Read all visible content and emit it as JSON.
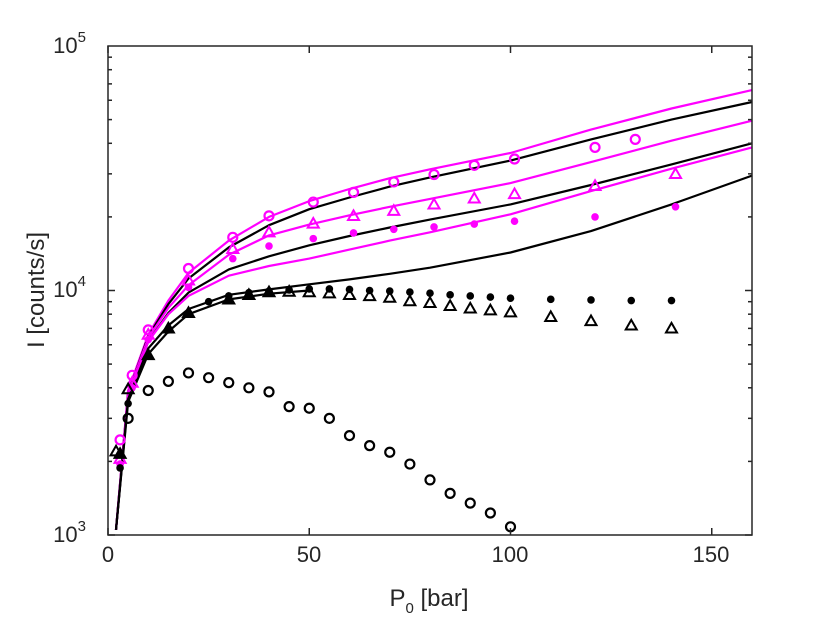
{
  "chart_data": {
    "type": "scatter",
    "title": "",
    "xlabel": {
      "main": "P",
      "sub": "0",
      "unit": " [bar]"
    },
    "ylabel": "I [counts/s]",
    "xlim": [
      0,
      160
    ],
    "ylim": [
      1000,
      100000
    ],
    "yscale": "log",
    "grid": false,
    "x_ticks": [
      {
        "value": 0,
        "label": "0"
      },
      {
        "value": 50,
        "label": "50"
      },
      {
        "value": 100,
        "label": "100"
      },
      {
        "value": 150,
        "label": "150"
      }
    ],
    "y_ticks": [
      {
        "value": 1000,
        "base": "10",
        "exp": "3"
      },
      {
        "value": 10000,
        "base": "10",
        "exp": "4"
      },
      {
        "value": 100000,
        "base": "10",
        "exp": "5"
      }
    ],
    "colors": {
      "magenta": "#ff00ff",
      "black": "#000000",
      "axis": "#262626"
    },
    "series": [
      {
        "name": "magenta-open-circles",
        "marker": "open-circle",
        "color": "#ff00ff",
        "x": [
          3,
          6,
          10,
          20,
          31,
          40,
          51,
          61,
          71,
          81,
          91,
          101,
          121,
          131
        ],
        "y": [
          2450,
          4500,
          6900,
          12300,
          16500,
          20200,
          23000,
          25200,
          27800,
          29800,
          32500,
          34500,
          38500,
          41500
        ]
      },
      {
        "name": "magenta-open-triangles",
        "marker": "open-triangle",
        "color": "#ff00ff",
        "x": [
          3,
          6,
          10,
          20,
          31,
          40,
          51,
          61,
          71,
          81,
          91,
          101,
          121,
          141
        ],
        "y": [
          2050,
          4200,
          6600,
          11000,
          14800,
          17300,
          18800,
          20200,
          21200,
          22500,
          23800,
          24800,
          26800,
          30000
        ]
      },
      {
        "name": "magenta-filled-circles",
        "marker": "filled-circle",
        "color": "#ff00ff",
        "x": [
          3,
          6,
          10,
          20,
          31,
          40,
          51,
          61,
          71,
          81,
          91,
          101,
          121,
          141
        ],
        "y": [
          1950,
          4000,
          6300,
          10300,
          13500,
          15200,
          16300,
          17200,
          17800,
          18200,
          18700,
          19200,
          20000,
          22000
        ]
      },
      {
        "name": "black-filled-circles",
        "marker": "filled-circle",
        "color": "#000000",
        "x": [
          3,
          5,
          10,
          15,
          20,
          25,
          30,
          35,
          40,
          45,
          50,
          55,
          60,
          65,
          70,
          75,
          80,
          85,
          90,
          95,
          100,
          110,
          120,
          130,
          140
        ],
        "y": [
          1880,
          3450,
          5400,
          6900,
          8100,
          9000,
          9500,
          9800,
          9950,
          10050,
          10150,
          10150,
          10100,
          10000,
          9950,
          9850,
          9750,
          9600,
          9500,
          9400,
          9300,
          9200,
          9150,
          9100,
          9100
        ]
      },
      {
        "name": "black-filled-triangles",
        "marker": "filled-triangle",
        "color": "#000000",
        "x": [
          3,
          10,
          15,
          20,
          30,
          35,
          40
        ],
        "y": [
          2150,
          5450,
          7000,
          8100,
          9200,
          9600,
          9850
        ]
      },
      {
        "name": "black-open-triangles",
        "marker": "open-triangle",
        "color": "#000000",
        "x": [
          2,
          5,
          45,
          50,
          55,
          60,
          65,
          70,
          75,
          80,
          85,
          90,
          95,
          100,
          110,
          120,
          130,
          140
        ],
        "y": [
          2200,
          3950,
          9900,
          9850,
          9750,
          9600,
          9500,
          9350,
          9050,
          8900,
          8650,
          8450,
          8300,
          8150,
          7800,
          7500,
          7200,
          7000
        ]
      },
      {
        "name": "black-open-circles",
        "marker": "open-circle",
        "color": "#000000",
        "x": [
          5,
          10,
          15,
          20,
          25,
          30,
          35,
          40,
          45,
          50,
          55,
          60,
          65,
          70,
          75,
          80,
          85,
          90,
          95,
          100
        ],
        "y": [
          3000,
          3900,
          4250,
          4600,
          4400,
          4200,
          4000,
          3850,
          3350,
          3300,
          3000,
          2550,
          2320,
          2180,
          1950,
          1680,
          1480,
          1350,
          1230,
          1080
        ]
      }
    ],
    "fit_lines": [
      {
        "name": "magenta-fit-upper",
        "color": "#ff00ff",
        "x": [
          2,
          5,
          10,
          15,
          20,
          30,
          40,
          50,
          60,
          70,
          80,
          100,
          120,
          140,
          160
        ],
        "y": [
          1050,
          3900,
          6600,
          9100,
          11800,
          16000,
          20000,
          23200,
          26000,
          28800,
          31300,
          36500,
          45500,
          55500,
          66000
        ]
      },
      {
        "name": "black-fit-1",
        "color": "#000000",
        "x": [
          2,
          5,
          10,
          15,
          20,
          30,
          40,
          50,
          60,
          70,
          80,
          100,
          120,
          140,
          160
        ],
        "y": [
          1050,
          3800,
          6500,
          8800,
          11200,
          15000,
          18500,
          21500,
          24000,
          26600,
          29000,
          34000,
          41500,
          50000,
          59000
        ]
      },
      {
        "name": "magenta-fit-middle",
        "color": "#ff00ff",
        "x": [
          2,
          5,
          10,
          15,
          20,
          30,
          40,
          50,
          60,
          70,
          80,
          100,
          120,
          140,
          160
        ],
        "y": [
          1050,
          3800,
          6400,
          8500,
          10500,
          14000,
          16800,
          18600,
          20300,
          22000,
          23700,
          27500,
          33500,
          41000,
          49500
        ]
      },
      {
        "name": "black-fit-2",
        "color": "#000000",
        "x": [
          2,
          5,
          10,
          15,
          20,
          30,
          40,
          50,
          60,
          70,
          80,
          100,
          120,
          140,
          160
        ],
        "y": [
          1050,
          3700,
          6200,
          8100,
          9800,
          12200,
          13800,
          15300,
          16700,
          18100,
          19500,
          22500,
          27000,
          32800,
          40000
        ]
      },
      {
        "name": "magenta-fit-lower",
        "color": "#ff00ff",
        "x": [
          2,
          5,
          10,
          15,
          20,
          30,
          40,
          50,
          60,
          70,
          80,
          100,
          120,
          140,
          160
        ],
        "y": [
          1050,
          3700,
          6200,
          8000,
          9500,
          11500,
          12600,
          13500,
          14700,
          16000,
          17300,
          20500,
          25500,
          31500,
          38500
        ]
      },
      {
        "name": "black-fit-3",
        "color": "#000000",
        "x": [
          2,
          5,
          10,
          15,
          20,
          30,
          40,
          50,
          60,
          70,
          80,
          100,
          120,
          140,
          160
        ],
        "y": [
          1050,
          3600,
          5800,
          7200,
          8400,
          9600,
          10100,
          10600,
          11100,
          11700,
          12400,
          14300,
          17500,
          22500,
          29500
        ]
      },
      {
        "name": "black-fit-4",
        "color": "#000000",
        "x": [
          2,
          5,
          10,
          15,
          20,
          30,
          40,
          50
        ],
        "y": [
          1050,
          3500,
          5500,
          6800,
          8000,
          9200,
          9700,
          10000
        ]
      }
    ]
  }
}
